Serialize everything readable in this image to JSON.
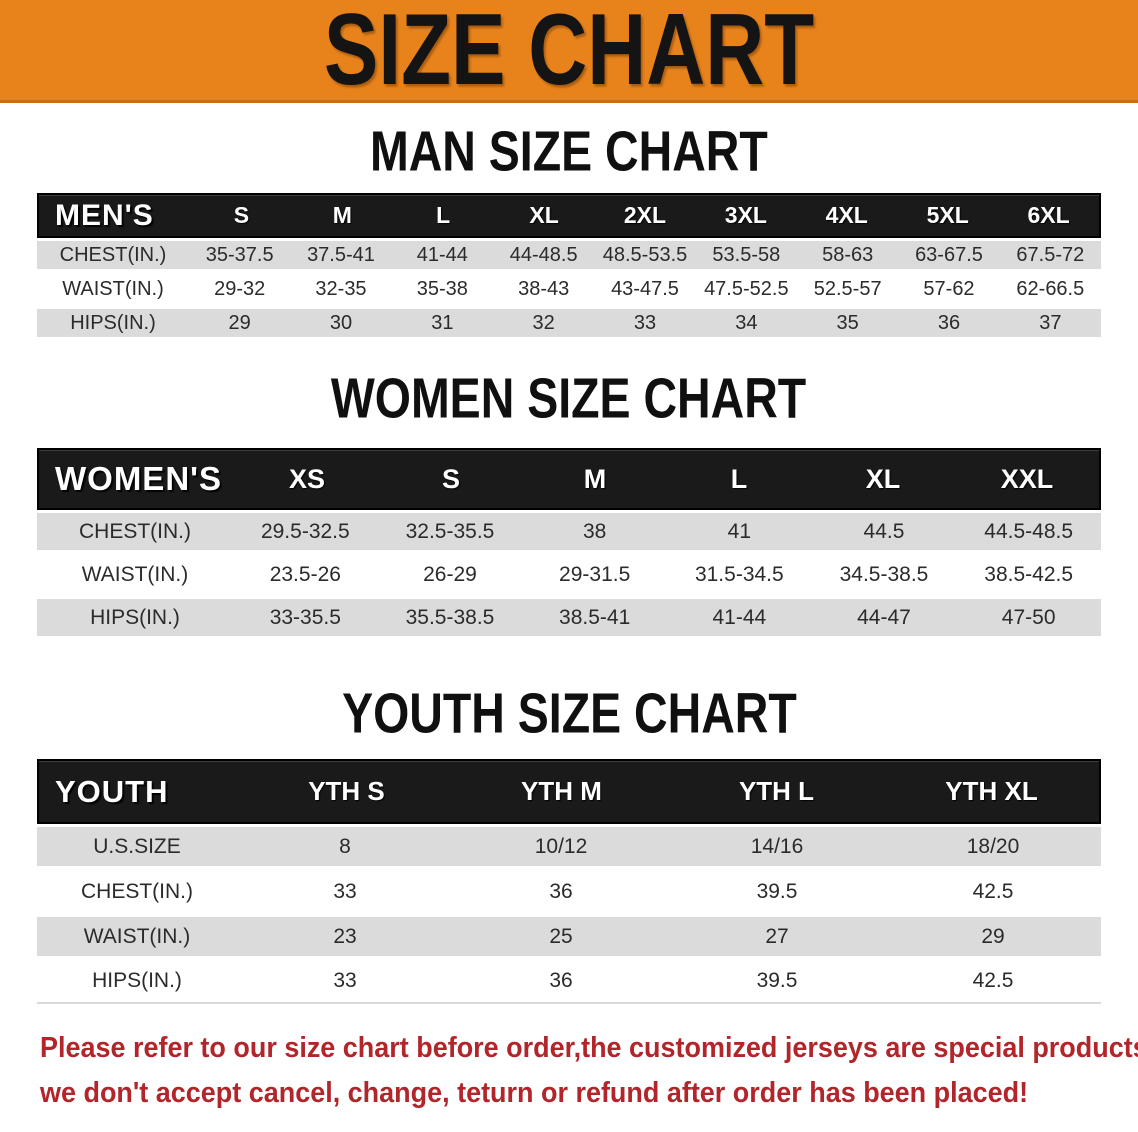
{
  "banner": {
    "title": "SIZE CHART",
    "bg_color": "#e8831c"
  },
  "colors": {
    "banner_orange": "#e8831c",
    "header_black": "#1a1a1a",
    "row_gray": "#dbdbdb",
    "note_red": "#b2262b"
  },
  "sections": [
    {
      "heading": "MAN SIZE CHART",
      "table": {
        "header_label": "MEN'S",
        "columns": [
          "S",
          "M",
          "L",
          "XL",
          "2XL",
          "3XL",
          "4XL",
          "5XL",
          "6XL"
        ],
        "rows": [
          {
            "label": "CHEST(IN.)",
            "values": [
              "35-37.5",
              "37.5-41",
              "41-44",
              "44-48.5",
              "48.5-53.5",
              "53.5-58",
              "58-63",
              "63-67.5",
              "67.5-72"
            ]
          },
          {
            "label": "WAIST(IN.)",
            "values": [
              "29-32",
              "32-35",
              "35-38",
              "38-43",
              "43-47.5",
              "47.5-52.5",
              "52.5-57",
              "57-62",
              "62-66.5"
            ]
          },
          {
            "label": "HIPS(IN.)",
            "values": [
              "29",
              "30",
              "31",
              "32",
              "33",
              "34",
              "35",
              "36",
              "37"
            ]
          }
        ]
      }
    },
    {
      "heading": "WOMEN SIZE CHART",
      "table": {
        "header_label": "WOMEN'S",
        "columns": [
          "XS",
          "S",
          "M",
          "L",
          "XL",
          "XXL"
        ],
        "rows": [
          {
            "label": "CHEST(IN.)",
            "values": [
              "29.5-32.5",
              "32.5-35.5",
              "38",
              "41",
              "44.5",
              "44.5-48.5"
            ]
          },
          {
            "label": "WAIST(IN.)",
            "values": [
              "23.5-26",
              "26-29",
              "29-31.5",
              "31.5-34.5",
              "34.5-38.5",
              "38.5-42.5"
            ]
          },
          {
            "label": "HIPS(IN.)",
            "values": [
              "33-35.5",
              "35.5-38.5",
              "38.5-41",
              "41-44",
              "44-47",
              "47-50"
            ]
          }
        ]
      }
    },
    {
      "heading": "YOUTH SIZE CHART",
      "table": {
        "header_label": "YOUTH",
        "columns": [
          "YTH S",
          "YTH M",
          "YTH L",
          "YTH XL"
        ],
        "rows": [
          {
            "label": "U.S.SIZE",
            "values": [
              "8",
              "10/12",
              "14/16",
              "18/20"
            ]
          },
          {
            "label": "CHEST(IN.)",
            "values": [
              "33",
              "36",
              "39.5",
              "42.5"
            ]
          },
          {
            "label": "WAIST(IN.)",
            "values": [
              "23",
              "25",
              "27",
              "29"
            ]
          },
          {
            "label": "HIPS(IN.)",
            "values": [
              "33",
              "36",
              "39.5",
              "42.5"
            ]
          }
        ]
      }
    }
  ],
  "footer": {
    "line1": "Please refer to our size chart before order,the customized jerseys are special products,",
    "line2": "we don't accept cancel, change, teturn or refund after order has been placed!"
  }
}
